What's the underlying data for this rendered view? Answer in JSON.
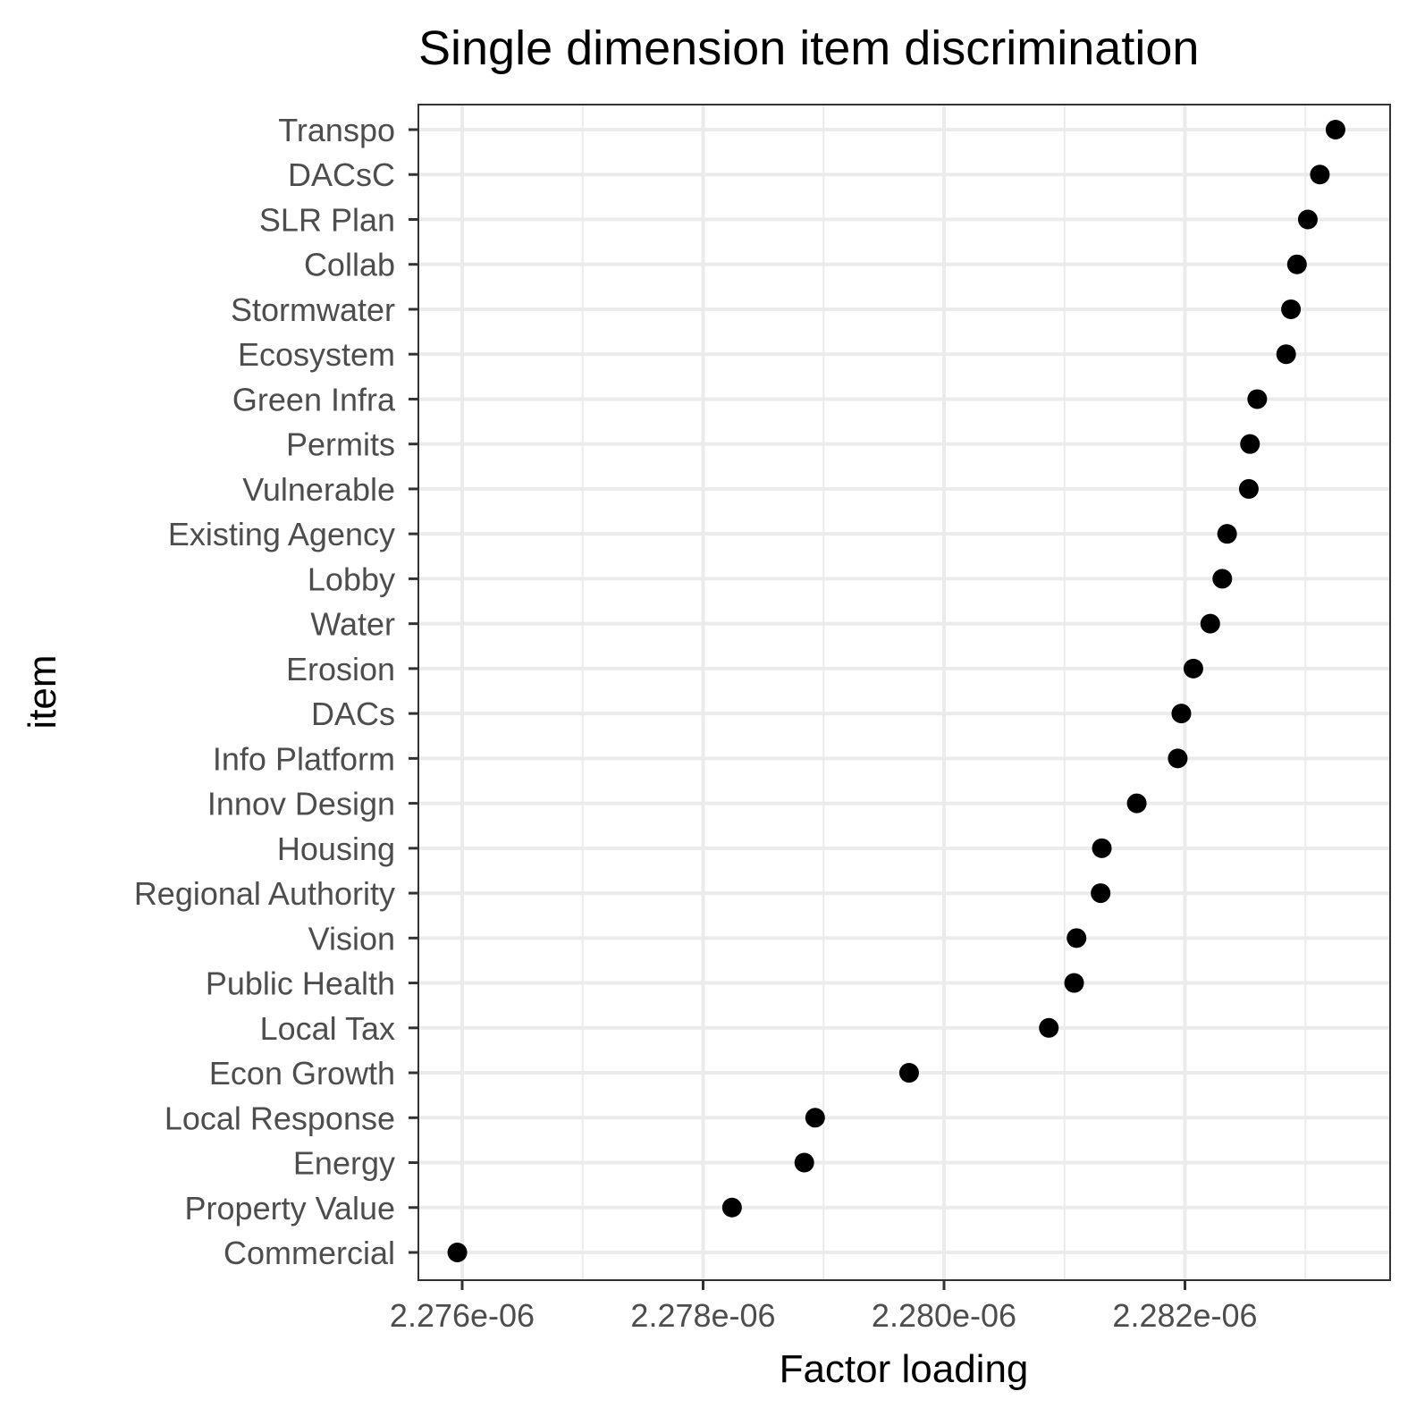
{
  "chart_data": {
    "type": "scatter",
    "title": "Single dimension item discrimination",
    "xlabel": "Factor loading",
    "ylabel": "item",
    "xlim": [
      2.27596e-06,
      2.28328e-06
    ],
    "x_ticks": [
      2.276e-06,
      2.278e-06,
      2.28e-06,
      2.282e-06
    ],
    "x_tick_labels": [
      "2.276e-06",
      "2.278e-06",
      "2.280e-06",
      "2.282e-06"
    ],
    "x_minor_ticks": [
      2.277e-06,
      2.279e-06,
      2.281e-06,
      2.283e-06
    ],
    "grid": true,
    "points": [
      {
        "item": "Transpo",
        "value": 2.28325e-06
      },
      {
        "item": "DACsC",
        "value": 2.28312e-06
      },
      {
        "item": "SLR Plan",
        "value": 2.28302e-06
      },
      {
        "item": "Collab",
        "value": 2.28293e-06
      },
      {
        "item": "Stormwater",
        "value": 2.28288e-06
      },
      {
        "item": "Ecosystem",
        "value": 2.28284e-06
      },
      {
        "item": "Green Infra",
        "value": 2.2826e-06
      },
      {
        "item": "Permits",
        "value": 2.28254e-06
      },
      {
        "item": "Vulnerable",
        "value": 2.28253e-06
      },
      {
        "item": "Existing Agency",
        "value": 2.28235e-06
      },
      {
        "item": "Lobby",
        "value": 2.28231e-06
      },
      {
        "item": "Water",
        "value": 2.28221e-06
      },
      {
        "item": "Erosion",
        "value": 2.28207e-06
      },
      {
        "item": "DACs",
        "value": 2.28197e-06
      },
      {
        "item": "Info Platform",
        "value": 2.28194e-06
      },
      {
        "item": "Innov Design",
        "value": 2.2816e-06
      },
      {
        "item": "Housing",
        "value": 2.28131e-06
      },
      {
        "item": "Regional Authority",
        "value": 2.2813e-06
      },
      {
        "item": "Vision",
        "value": 2.2811e-06
      },
      {
        "item": "Public Health",
        "value": 2.28108e-06
      },
      {
        "item": "Local Tax",
        "value": 2.28087e-06
      },
      {
        "item": "Econ Growth",
        "value": 2.27971e-06
      },
      {
        "item": "Local Response",
        "value": 2.27893e-06
      },
      {
        "item": "Energy",
        "value": 2.27884e-06
      },
      {
        "item": "Property Value",
        "value": 2.27824e-06
      },
      {
        "item": "Commercial",
        "value": 2.27596e-06
      }
    ]
  }
}
